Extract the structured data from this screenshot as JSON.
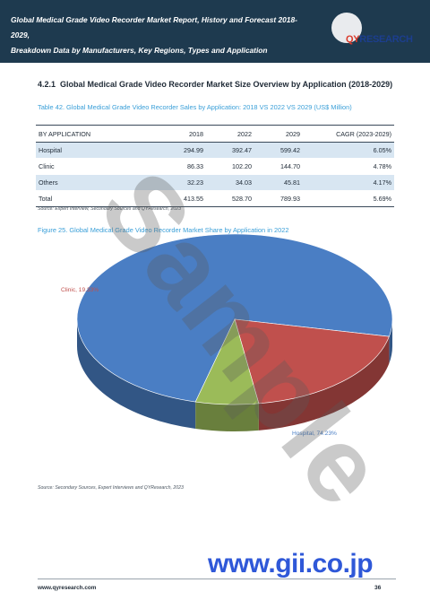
{
  "header": {
    "title_line1": "Global Medical Grade Video Recorder Market Report, History and Forecast 2018-2029,",
    "title_line2": "Breakdown Data by Manufacturers, Key Regions, Types and Application",
    "logo_prefix": "QY",
    "logo_suffix": "RESEARCH"
  },
  "section": {
    "number": "4.2.1",
    "title": "Global Medical Grade Video Recorder Market Size Overview by Application (2018-2029)"
  },
  "table": {
    "caption": "Table 42.  Global Medical Grade Video Recorder Sales by Application: 2018 VS 2022 VS 2029 (US$ Million)",
    "columns": [
      "BY APPLICATION",
      "2018",
      "2022",
      "2029",
      "CAGR (2023-2029)"
    ],
    "rows": [
      {
        "name": "Hospital",
        "v2018": "294.99",
        "v2022": "392.47",
        "v2029": "599.42",
        "cagr": "6.05%"
      },
      {
        "name": "Clinic",
        "v2018": "86.33",
        "v2022": "102.20",
        "v2029": "144.70",
        "cagr": "4.78%"
      },
      {
        "name": "Others",
        "v2018": "32.23",
        "v2022": "34.03",
        "v2029": "45.81",
        "cagr": "4.17%"
      },
      {
        "name": "Total",
        "v2018": "413.55",
        "v2022": "528.70",
        "v2029": "789.93",
        "cagr": "5.69%"
      }
    ],
    "source": "Source: Expert Interview, Secondary Sources and QYResearch, 2023"
  },
  "figure": {
    "caption": "Figure 25.  Global Medical Grade Video Recorder Market Share by Application in 2022",
    "source": "Source: Secondary Sources, Expert Interviews and QYResearch, 2023"
  },
  "chart_data": {
    "type": "pie",
    "title": "Global Medical Grade Video Recorder Market Share by Application in 2022",
    "labels": [
      "Hospital",
      "Clinic",
      "Others"
    ],
    "values": [
      74.23,
      19.33,
      6.44
    ],
    "display_labels": [
      "Hospital, 74.23%",
      "Clinic, 19.33%",
      ""
    ],
    "colors": [
      "#4a7ec4",
      "#c0504d",
      "#9bbb59"
    ],
    "style": "3d"
  },
  "overlays": {
    "sample_text": "Sample",
    "watermark_text": "www.gii.co.jp"
  },
  "footer": {
    "url": "www.qyresearch.com",
    "page": "36"
  }
}
